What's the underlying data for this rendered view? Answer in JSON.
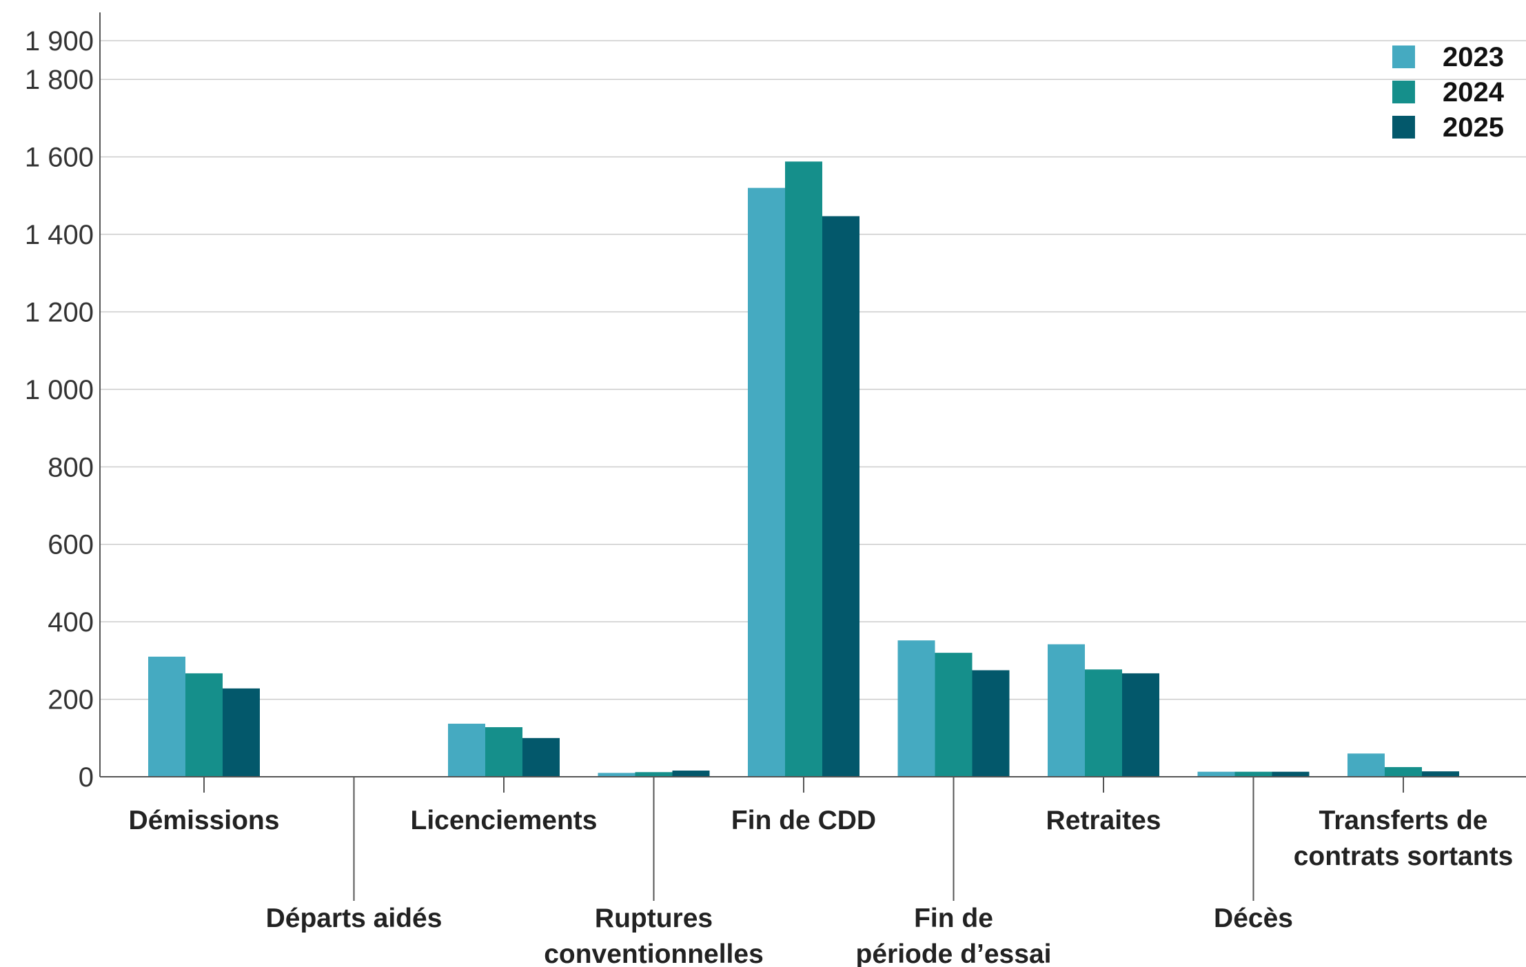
{
  "chart_data": {
    "type": "bar",
    "title": "",
    "xlabel": "",
    "ylabel": "",
    "ylim": [
      0,
      2000
    ],
    "yticks": [
      0,
      200,
      400,
      600,
      800,
      1000,
      1200,
      1400,
      1600,
      1800,
      1900
    ],
    "ytick_labels": [
      "0",
      "200",
      "400",
      "600",
      "800",
      "1 000",
      "1 200",
      "1 400",
      "1 600",
      "1 800",
      "1 900"
    ],
    "grid": true,
    "legend_position": "top-right",
    "categories": [
      [
        "Démissions"
      ],
      [
        "Départs aidés"
      ],
      [
        "Licenciements"
      ],
      [
        "Ruptures",
        "conventionnelles"
      ],
      [
        "Fin de CDD"
      ],
      [
        "Fin de",
        "période d’essai"
      ],
      [
        "Retraites"
      ],
      [
        "Décès"
      ],
      [
        "Transferts de",
        "contrats sortants"
      ]
    ],
    "series": [
      {
        "name": "2023",
        "color": "#45aac1",
        "values": [
          310,
          0,
          137,
          10,
          1520,
          352,
          342,
          13,
          60
        ]
      },
      {
        "name": "2024",
        "color": "#158f8b",
        "values": [
          267,
          0,
          128,
          12,
          1588,
          320,
          277,
          13,
          25
        ]
      },
      {
        "name": "2025",
        "color": "#03586b",
        "values": [
          228,
          0,
          100,
          16,
          1447,
          275,
          267,
          13,
          14
        ]
      }
    ]
  }
}
